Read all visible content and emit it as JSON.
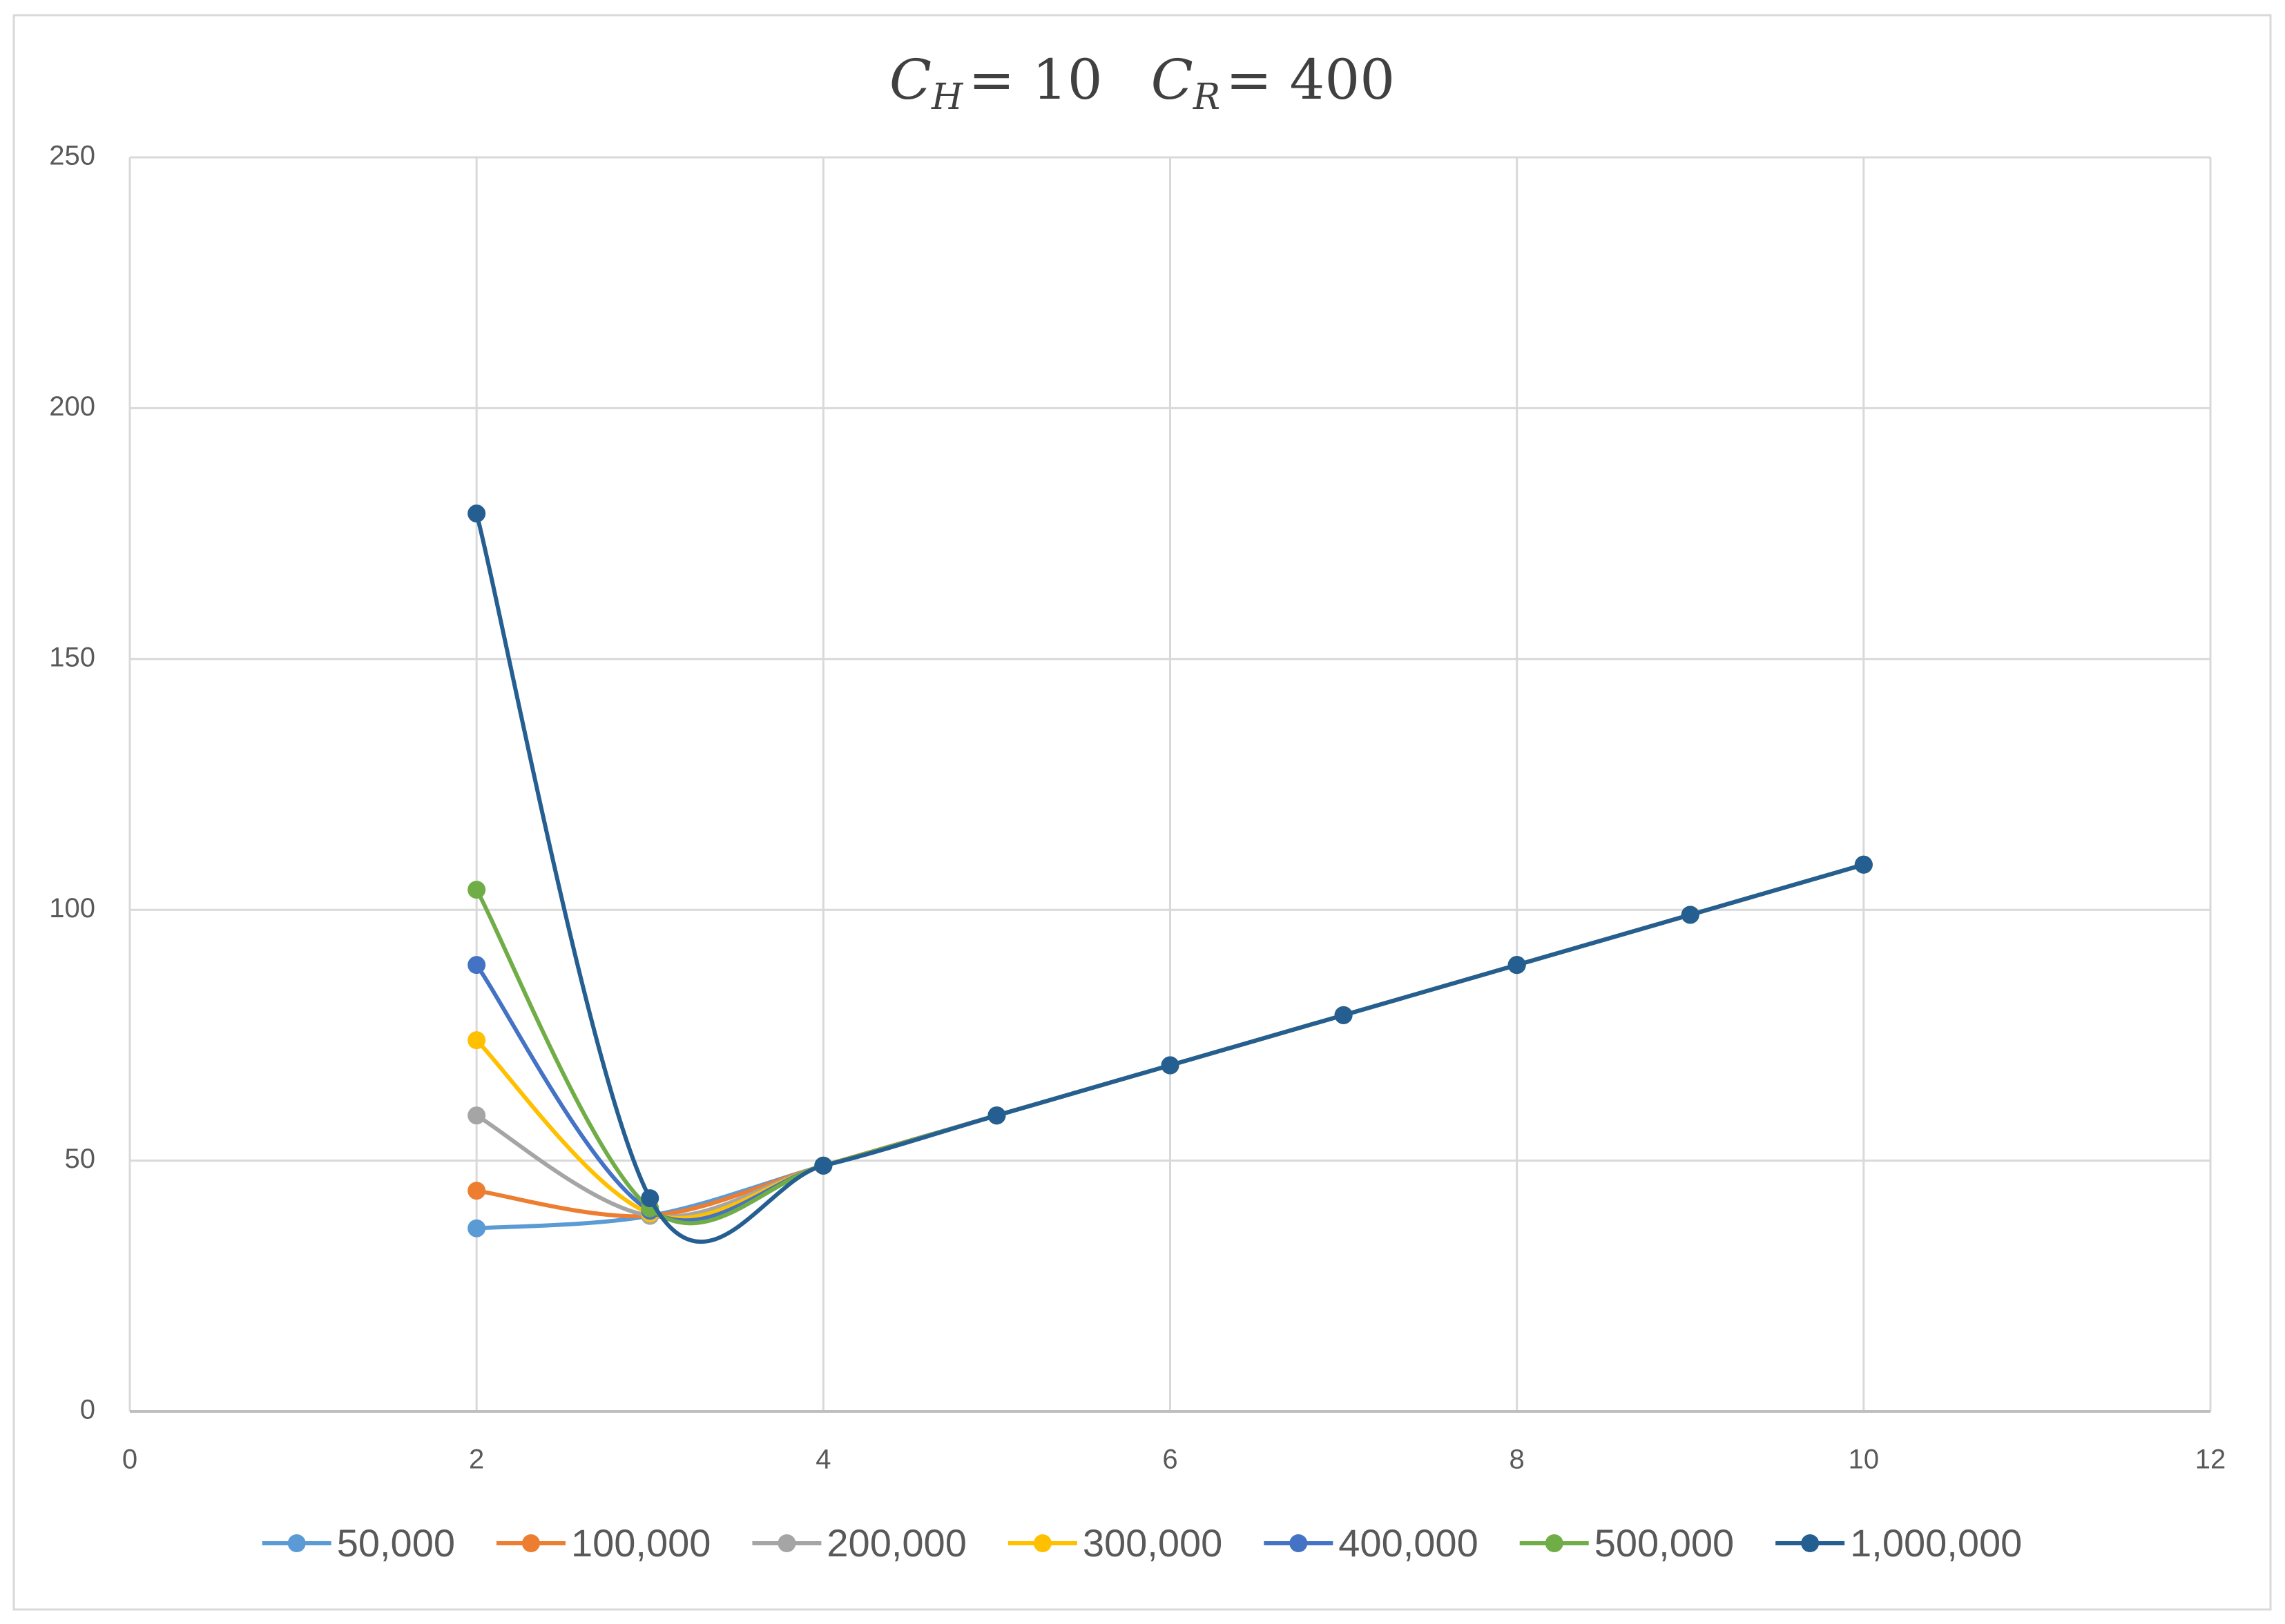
{
  "chart_data": {
    "type": "line",
    "title": [
      {
        "symbol": "C",
        "subscript": "H",
        "value": "= 10"
      },
      {
        "symbol": "C",
        "subscript": "R",
        "value": "= 400"
      }
    ],
    "smooth": true,
    "grid": true,
    "legend": "bottom",
    "xlim": [
      0,
      12
    ],
    "xticks": [
      0,
      2,
      4,
      6,
      8,
      10,
      12
    ],
    "ylim": [
      0,
      250
    ],
    "yticks": [
      0,
      50,
      100,
      150,
      200,
      250
    ],
    "series": [
      {
        "name": "50,000",
        "color": "#5b9bd5",
        "x": [
          2,
          3,
          4,
          5,
          6,
          7,
          8,
          9,
          10
        ],
        "values": [
          36.5,
          39,
          49,
          59,
          69,
          79,
          89,
          99,
          109
        ]
      },
      {
        "name": "100,000",
        "color": "#ed7d31",
        "x": [
          2,
          3,
          4,
          5,
          6,
          7,
          8,
          9,
          10
        ],
        "values": [
          44,
          39,
          49,
          59,
          69,
          79,
          89,
          99,
          109
        ]
      },
      {
        "name": "200,000",
        "color": "#a5a5a5",
        "x": [
          2,
          3,
          4,
          5,
          6,
          7,
          8,
          9,
          10
        ],
        "values": [
          59,
          39,
          49,
          59,
          69,
          79,
          89,
          99,
          109
        ]
      },
      {
        "name": "300,000",
        "color": "#ffc000",
        "x": [
          2,
          3,
          4,
          5,
          6,
          7,
          8,
          9,
          10
        ],
        "values": [
          74,
          39.5,
          49,
          59,
          69,
          79,
          89,
          99,
          109
        ]
      },
      {
        "name": "400,000",
        "color": "#4472c4",
        "x": [
          2,
          3,
          4,
          5,
          6,
          7,
          8,
          9,
          10
        ],
        "values": [
          89,
          40,
          49,
          59,
          69,
          79,
          89,
          99,
          109
        ]
      },
      {
        "name": "500,000",
        "color": "#70ad47",
        "x": [
          2,
          3,
          4,
          5,
          6,
          7,
          8,
          9,
          10
        ],
        "values": [
          104,
          40.5,
          49,
          59,
          69,
          79,
          89,
          99,
          109
        ]
      },
      {
        "name": "1,000,000",
        "color": "#255e91",
        "x": [
          2,
          3,
          4,
          5,
          6,
          7,
          8,
          9,
          10
        ],
        "values": [
          179,
          42.5,
          49,
          59,
          69,
          79,
          89,
          99,
          109
        ]
      }
    ]
  }
}
